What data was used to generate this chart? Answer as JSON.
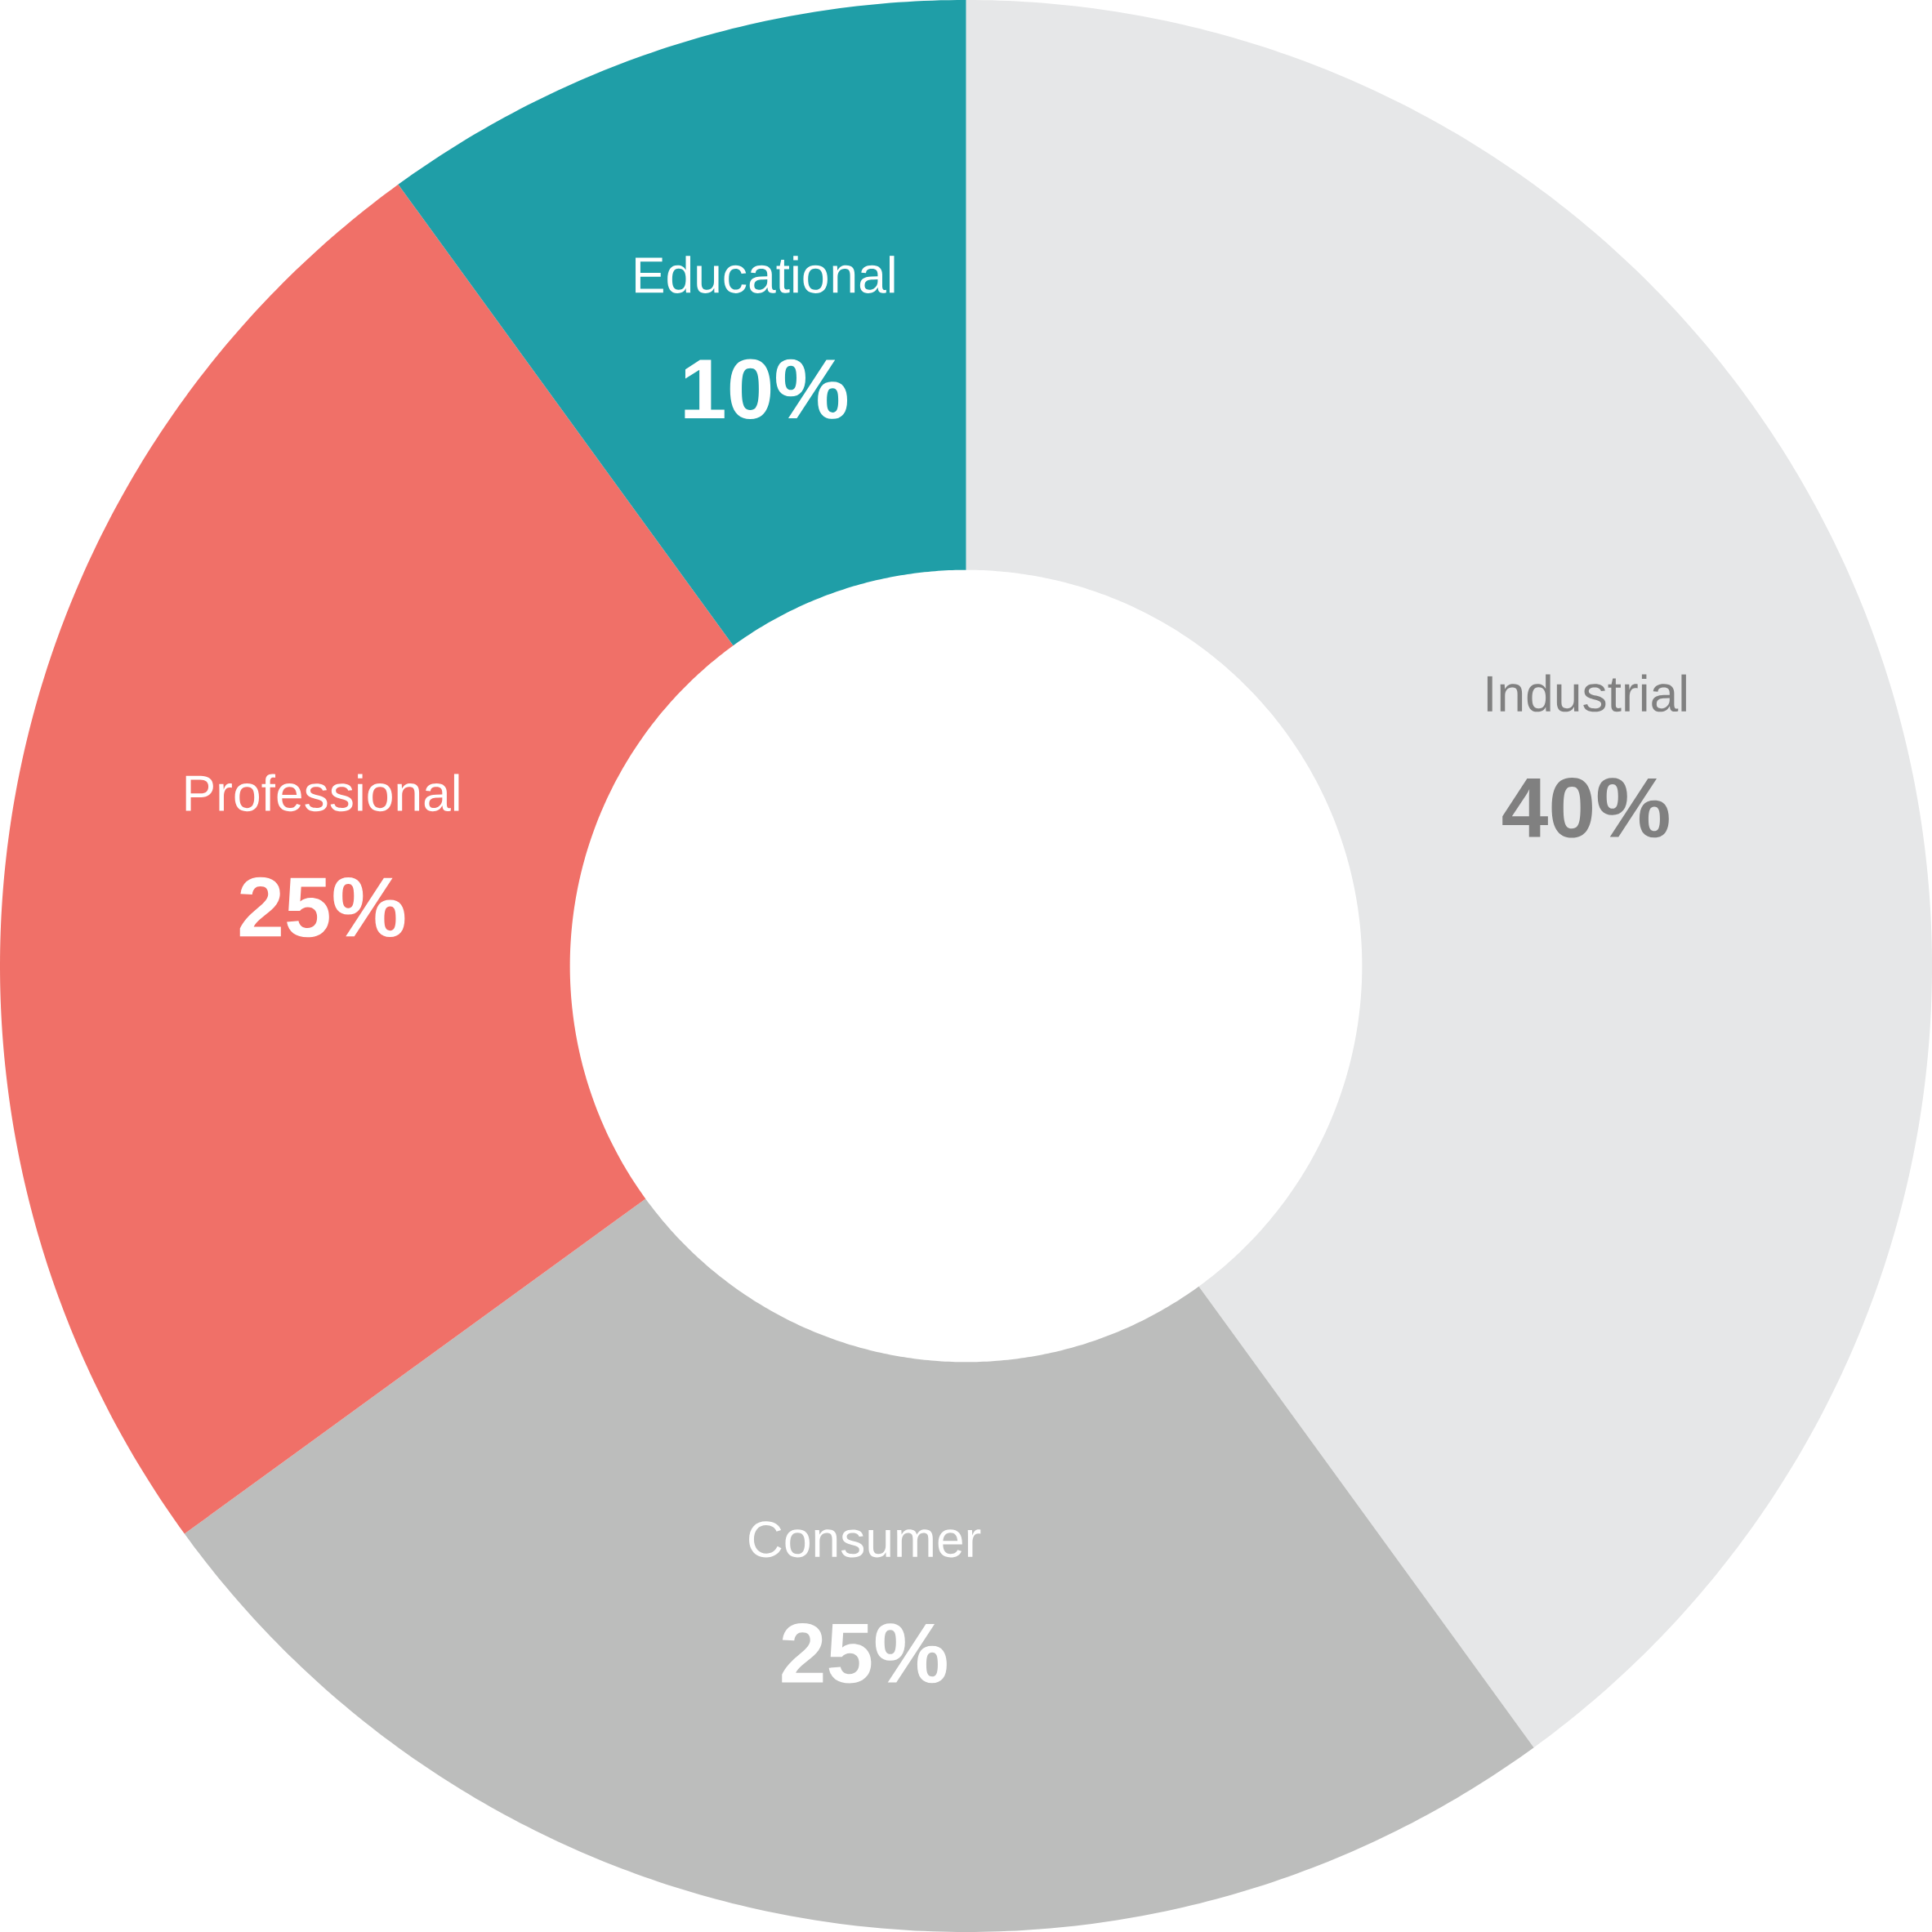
{
  "chart_data": {
    "type": "donut",
    "categories": [
      "Industrial",
      "Consumer",
      "Professional",
      "Educational"
    ],
    "values": [
      40,
      25,
      25,
      10
    ],
    "value_labels": [
      "40%",
      "25%",
      "25%",
      "10%"
    ],
    "colors": [
      "#e6e7e8",
      "#bcbdbc",
      "#f07068",
      "#1f9ea7"
    ]
  }
}
